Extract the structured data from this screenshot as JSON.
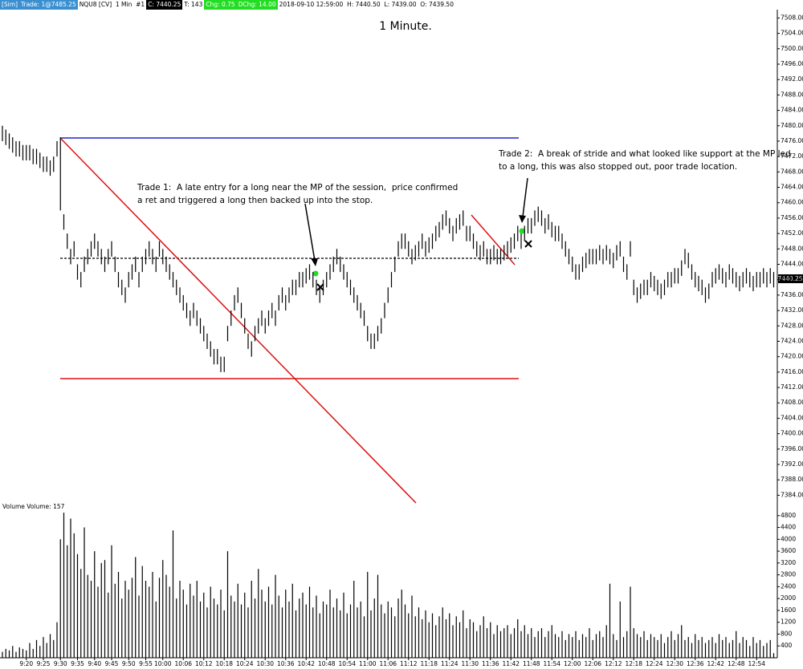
{
  "header": {
    "segments": [
      "[Sim]",
      "Trade: 1@7485.25",
      "NQU8 [CV]  1 Min  #1",
      "C: 7440.25",
      "T: 143",
      "Chg: 0.75",
      "DChg: 14.00",
      "2018-09-10 12:59:00  H: 7440.50  L: 7439.00  O: 7439.50"
    ]
  },
  "chart_data": {
    "type": "ohlc",
    "title": "1 Minute.",
    "annotations": [
      "Trade 1:  A late entry for a long near the MP of the session,  price confirmed",
      "a ret and triggered a long then backed up into the stop.",
      "Trade 2:  A break of stride and what looked like support at the MP led",
      "to a long, this was also stopped out, poor trade location."
    ],
    "last_price_label": "7440.25",
    "categories": [
      null,
      null,
      null,
      null,
      null,
      null,
      null,
      "9:20",
      null,
      null,
      null,
      null,
      "9:25",
      null,
      null,
      null,
      null,
      "9:30",
      null,
      null,
      null,
      null,
      "9:35",
      null,
      null,
      null,
      null,
      "9:40",
      null,
      null,
      null,
      null,
      "9:45",
      null,
      null,
      null,
      null,
      "9:50",
      null,
      null,
      null,
      null,
      "9:55",
      null,
      null,
      null,
      null,
      "10:00",
      null,
      null,
      null,
      null,
      null,
      "10:06",
      null,
      null,
      null,
      null,
      null,
      "10:12",
      null,
      null,
      null,
      null,
      null,
      "10:18",
      null,
      null,
      null,
      null,
      null,
      "10:24",
      null,
      null,
      null,
      null,
      null,
      "10:30",
      null,
      null,
      null,
      null,
      null,
      "10:36",
      null,
      null,
      null,
      null,
      null,
      "10:42",
      null,
      null,
      null,
      null,
      null,
      "10:48",
      null,
      null,
      null,
      null,
      null,
      "10:54",
      null,
      null,
      null,
      null,
      null,
      "11:00",
      null,
      null,
      null,
      null,
      null,
      "11:06",
      null,
      null,
      null,
      null,
      null,
      "11:12",
      null,
      null,
      null,
      null,
      null,
      "11:18",
      null,
      null,
      null,
      null,
      null,
      "11:24",
      null,
      null,
      null,
      null,
      null,
      "11:30",
      null,
      null,
      null,
      null,
      null,
      "11:36",
      null,
      null,
      null,
      null,
      null,
      "11:42",
      null,
      null,
      null,
      null,
      null,
      "11:48",
      null,
      null,
      null,
      null,
      null,
      "11:54",
      null,
      null,
      null,
      null,
      null,
      "12:00",
      null,
      null,
      null,
      null,
      null,
      "12:06",
      null,
      null,
      null,
      null,
      null,
      "12:12",
      null,
      null,
      null,
      null,
      null,
      "12:18",
      null,
      null,
      null,
      null,
      null,
      "12:24",
      null,
      null,
      null,
      null,
      null,
      "12:30",
      null,
      null,
      null,
      null,
      null,
      "12:36",
      null,
      null,
      null,
      null,
      null,
      "12:42",
      null,
      null,
      null,
      null,
      null,
      "12:48",
      null,
      null,
      null,
      null,
      null,
      "12:54",
      null,
      null,
      null,
      null,
      null
    ],
    "high": [
      7480,
      7479,
      7478,
      7477,
      7476,
      7476,
      7475,
      7475,
      7475,
      7474,
      7474,
      7473,
      7472,
      7472,
      7471,
      7472,
      7476,
      7477,
      7457,
      7452,
      7448,
      7450,
      7444,
      7442,
      7446,
      7448,
      7450,
      7452,
      7450,
      7448,
      7446,
      7448,
      7450,
      7446,
      7442,
      7440,
      7438,
      7442,
      7444,
      7446,
      7442,
      7446,
      7448,
      7450,
      7448,
      7446,
      7450,
      7448,
      7446,
      7444,
      7442,
      7440,
      7438,
      7436,
      7434,
      7432,
      7434,
      7432,
      7430,
      7428,
      7426,
      7424,
      7422,
      7422,
      7420,
      7420,
      7428,
      7432,
      7436,
      7438,
      7434,
      7430,
      7426,
      7424,
      7428,
      7430,
      7432,
      7430,
      7432,
      7434,
      7432,
      7436,
      7438,
      7436,
      7438,
      7440,
      7440,
      7442,
      7442,
      7443,
      7444,
      7442,
      7440,
      7438,
      7440,
      7442,
      7444,
      7446,
      7448,
      7446,
      7444,
      7442,
      7440,
      7438,
      7436,
      7434,
      7432,
      7428,
      7426,
      7426,
      7428,
      7430,
      7434,
      7438,
      7442,
      7446,
      7450,
      7452,
      7452,
      7450,
      7448,
      7449,
      7450,
      7452,
      7450,
      7451,
      7452,
      7454,
      7455,
      7457,
      7458,
      7456,
      7454,
      7456,
      7457,
      7458,
      7454,
      7454,
      7452,
      7450,
      7449,
      7450,
      7448,
      7448,
      7449,
      7448,
      7448,
      7449,
      7450,
      7451,
      7452,
      7454,
      7452,
      7454,
      7456,
      7456,
      7458,
      7459,
      7458,
      7456,
      7457,
      7455,
      7454,
      7454,
      7452,
      7450,
      7448,
      7446,
      7444,
      7444,
      7446,
      7447,
      7448,
      7448,
      7448,
      7449,
      7448,
      7449,
      7448,
      7447,
      7449,
      7450,
      7446,
      7444,
      7450,
      7440,
      7438,
      7439,
      7440,
      7440,
      7442,
      7441,
      7440,
      7439,
      7440,
      7442,
      7442,
      7443,
      7443,
      7445,
      7448,
      7447,
      7444,
      7442,
      7441,
      7440,
      7438,
      7439,
      7442,
      7443,
      7444,
      7443,
      7442,
      7444,
      7443,
      7442,
      7441,
      7442,
      7443,
      7442,
      7441,
      7442,
      7442,
      7443,
      7442,
      7443,
      7442
    ],
    "low": [
      7476,
      7475,
      7474,
      7473,
      7472,
      7472,
      7471,
      7471,
      7471,
      7470,
      7470,
      7469,
      7468,
      7468,
      7467,
      7468,
      7472,
      7458,
      7453,
      7448,
      7444,
      7446,
      7440,
      7438,
      7442,
      7444,
      7446,
      7448,
      7446,
      7444,
      7442,
      7444,
      7446,
      7442,
      7438,
      7436,
      7434,
      7438,
      7440,
      7442,
      7438,
      7442,
      7444,
      7446,
      7444,
      7442,
      7446,
      7444,
      7442,
      7440,
      7438,
      7436,
      7434,
      7432,
      7430,
      7428,
      7430,
      7428,
      7426,
      7424,
      7422,
      7420,
      7418,
      7418,
      7416,
      7416,
      7424,
      7428,
      7432,
      7434,
      7430,
      7426,
      7422,
      7420,
      7424,
      7426,
      7428,
      7426,
      7428,
      7430,
      7428,
      7432,
      7434,
      7432,
      7434,
      7436,
      7436,
      7438,
      7438,
      7439,
      7440,
      7438,
      7436,
      7434,
      7436,
      7438,
      7440,
      7442,
      7444,
      7442,
      7440,
      7438,
      7436,
      7434,
      7432,
      7430,
      7428,
      7424,
      7422,
      7422,
      7424,
      7426,
      7430,
      7434,
      7438,
      7442,
      7446,
      7448,
      7448,
      7446,
      7444,
      7445,
      7446,
      7448,
      7446,
      7447,
      7448,
      7450,
      7451,
      7453,
      7454,
      7452,
      7450,
      7452,
      7453,
      7454,
      7450,
      7450,
      7448,
      7446,
      7445,
      7446,
      7444,
      7444,
      7445,
      7444,
      7444,
      7445,
      7446,
      7447,
      7448,
      7450,
      7448,
      7450,
      7452,
      7452,
      7454,
      7455,
      7454,
      7452,
      7453,
      7451,
      7450,
      7450,
      7448,
      7446,
      7444,
      7442,
      7440,
      7440,
      7442,
      7443,
      7444,
      7444,
      7444,
      7445,
      7444,
      7445,
      7444,
      7443,
      7445,
      7446,
      7442,
      7440,
      7446,
      7436,
      7434,
      7435,
      7436,
      7436,
      7438,
      7437,
      7436,
      7435,
      7436,
      7438,
      7438,
      7439,
      7439,
      7441,
      7444,
      7443,
      7440,
      7438,
      7437,
      7436,
      7434,
      7435,
      7438,
      7439,
      7440,
      7439,
      7438,
      7440,
      7439,
      7438,
      7437,
      7438,
      7439,
      7438,
      7437,
      7438,
      7438,
      7439,
      7438,
      7439,
      7438
    ],
    "color": "#000000",
    "ylim": [
      7382,
      7511
    ],
    "yticks": [
      {
        "value": 7384,
        "label": "7384.00"
      },
      {
        "value": 7388,
        "label": "7388.00"
      },
      {
        "value": 7392,
        "label": "7392.00"
      },
      {
        "value": 7396,
        "label": "7396.00"
      },
      {
        "value": 7400,
        "label": "7400.00"
      },
      {
        "value": 7404,
        "label": "7404.00"
      },
      {
        "value": 7408,
        "label": "7408.00"
      },
      {
        "value": 7412,
        "label": "7412.00"
      },
      {
        "value": 7416,
        "label": "7416.00"
      },
      {
        "value": 7420,
        "label": "7420.00"
      },
      {
        "value": 7424,
        "label": "7424.00"
      },
      {
        "value": 7428,
        "label": "7428.00"
      },
      {
        "value": 7432,
        "label": "7432.00"
      },
      {
        "value": 7436,
        "label": "7436.00"
      },
      {
        "value": 7440,
        "label": "7440.00"
      },
      {
        "value": 7444,
        "label": "7444.00"
      },
      {
        "value": 7448,
        "label": "7448.00"
      },
      {
        "value": 7452,
        "label": "7452.00"
      },
      {
        "value": 7456,
        "label": "7456.00"
      },
      {
        "value": 7460,
        "label": "7460.00"
      },
      {
        "value": 7464,
        "label": "7464.00"
      },
      {
        "value": 7468,
        "label": "7468.00"
      },
      {
        "value": 7472,
        "label": "7472.00"
      },
      {
        "value": 7476,
        "label": "7476.00"
      },
      {
        "value": 7480,
        "label": "7480.00"
      },
      {
        "value": 7484,
        "label": "7484.00"
      },
      {
        "value": 7488,
        "label": "7488.00"
      },
      {
        "value": 7492,
        "label": "7492.00"
      },
      {
        "value": 7496,
        "label": "7496.00"
      },
      {
        "value": 7500,
        "label": "7500.00"
      },
      {
        "value": 7504,
        "label": "7504.00"
      },
      {
        "value": 7508,
        "label": "7508.00"
      }
    ],
    "volume": {
      "title": "Volume  Volume: 157",
      "color": "#000000",
      "values": [
        200,
        300,
        250,
        400,
        200,
        350,
        300,
        250,
        500,
        300,
        600,
        400,
        700,
        500,
        800,
        600,
        1200,
        4000,
        4900,
        3800,
        4700,
        4200,
        3500,
        3000,
        4400,
        2800,
        2600,
        3600,
        2400,
        3200,
        3300,
        2200,
        3800,
        2500,
        2900,
        2000,
        2600,
        2300,
        2700,
        3400,
        2100,
        3100,
        2600,
        2400,
        2900,
        1900,
        2700,
        3300,
        2800,
        2400,
        4300,
        2000,
        2600,
        2300,
        1800,
        2500,
        2100,
        2600,
        1900,
        2200,
        1700,
        2400,
        2000,
        1800,
        2300,
        1600,
        3600,
        2100,
        1900,
        2500,
        1800,
        2200,
        1700,
        2600,
        2000,
        3000,
        2300,
        1900,
        2400,
        1800,
        2800,
        2100,
        1700,
        2300,
        1900,
        2500,
        1600,
        2000,
        2200,
        1800,
        2400,
        1700,
        2100,
        1500,
        1900,
        1800,
        2300,
        1700,
        2000,
        1600,
        2200,
        1500,
        1800,
        2600,
        1700,
        1900,
        1400,
        2900,
        1600,
        2000,
        2800,
        1800,
        1500,
        1900,
        1700,
        1400,
        2000,
        2300,
        1800,
        1500,
        2100,
        1400,
        1700,
        1300,
        1600,
        1200,
        1500,
        1100,
        1400,
        1700,
        1300,
        1500,
        1100,
        1400,
        1200,
        1600,
        1000,
        1300,
        1200,
        900,
        1100,
        1400,
        1000,
        1200,
        800,
        1100,
        900,
        1000,
        1100,
        800,
        1000,
        1300,
        900,
        1100,
        800,
        1000,
        700,
        900,
        1000,
        700,
        900,
        1100,
        800,
        700,
        900,
        600,
        800,
        700,
        900,
        600,
        800,
        700,
        1000,
        600,
        800,
        900,
        700,
        1100,
        2500,
        800,
        600,
        1900,
        700,
        900,
        2400,
        1000,
        800,
        700,
        900,
        600,
        800,
        700,
        600,
        800,
        500,
        700,
        900,
        600,
        800,
        1100,
        600,
        700,
        500,
        800,
        600,
        700,
        500,
        600,
        700,
        500,
        800,
        600,
        700,
        500,
        600,
        900,
        500,
        700,
        600,
        400,
        700,
        500,
        600,
        400,
        500,
        600,
        157
      ],
      "ylim": [
        0,
        5200
      ],
      "yticks": [
        400,
        800,
        1200,
        1600,
        2000,
        2400,
        2800,
        3200,
        3600,
        4000,
        4400,
        4800
      ]
    }
  }
}
